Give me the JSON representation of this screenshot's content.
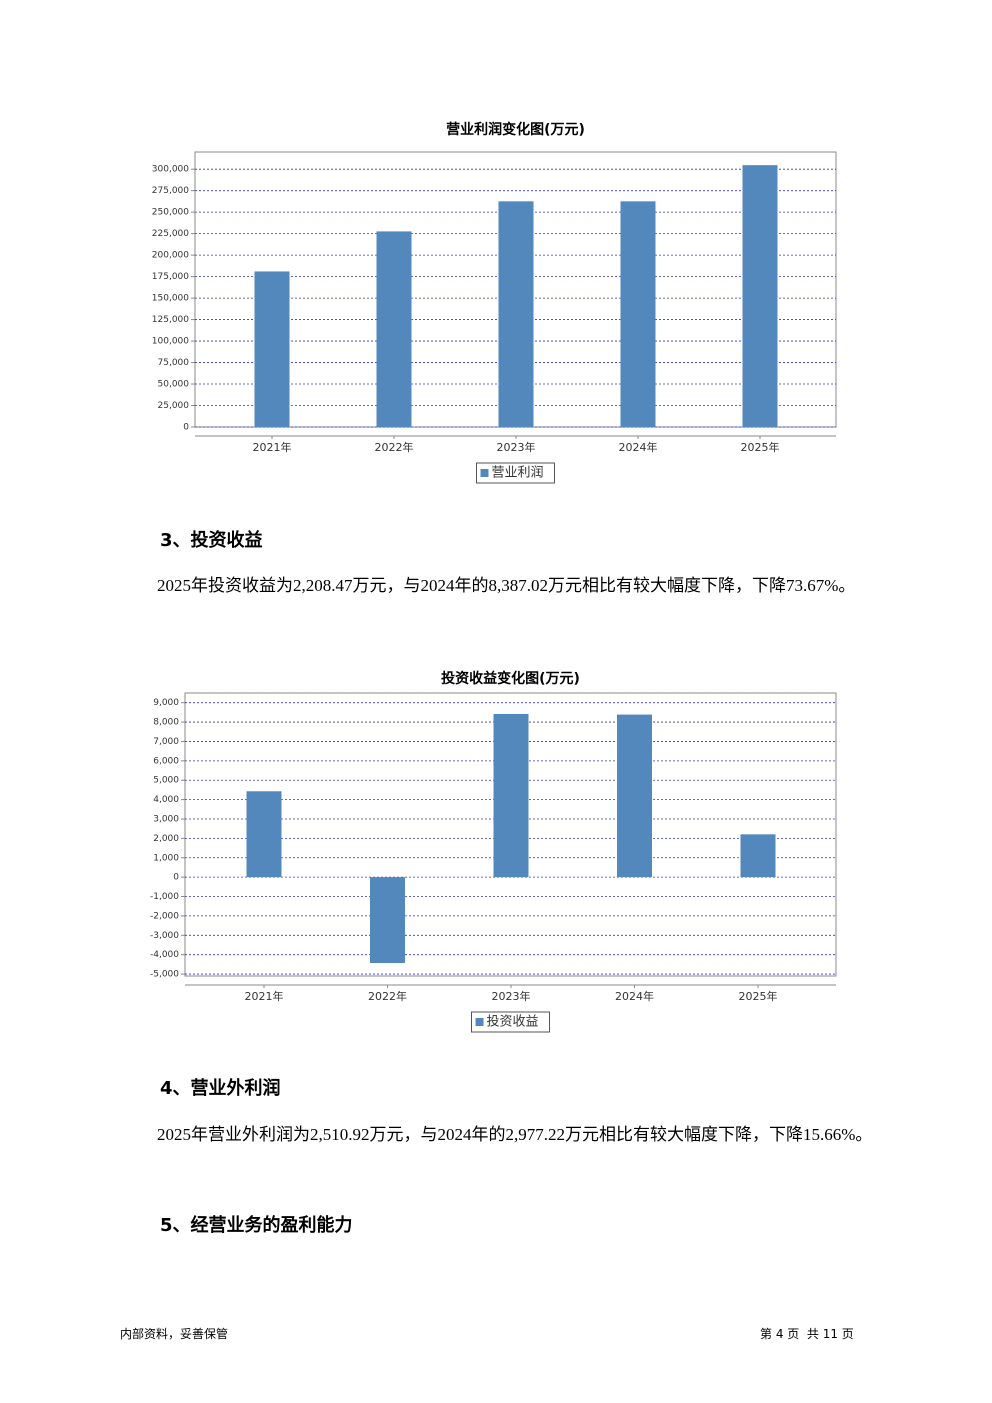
{
  "charts": [
    {
      "type": "bar",
      "title": "营业利润变化图(万元)",
      "categories": [
        "2021年",
        "2022年",
        "2023年",
        "2024年",
        "2025年"
      ],
      "series": [
        {
          "name": "营业利润",
          "color": "#5288bc",
          "values": [
            181000,
            227600,
            262600,
            262600,
            304700
          ]
        }
      ],
      "ylim": [
        0,
        320000
      ],
      "yticks": [
        0,
        {
          "value": 25000,
          "label": "25,000"
        },
        {
          "value": 50000,
          "label": "50,000"
        },
        {
          "value": 75000,
          "label": "75,000"
        },
        {
          "value": 100000,
          "label": "100,000"
        },
        {
          "value": 125000,
          "label": "125,000"
        },
        {
          "value": 150000,
          "label": "150,000"
        },
        {
          "value": 175000,
          "label": "175,000"
        },
        {
          "value": 200000,
          "label": "200,000"
        },
        {
          "value": 225000,
          "label": "225,000"
        },
        {
          "value": 250000,
          "label": "250,000"
        },
        {
          "value": 275000,
          "label": "275,000"
        },
        {
          "value": 300000,
          "label": "300,000"
        }
      ],
      "grid": true
    },
    {
      "type": "bar",
      "title": "投资收益变化图(万元)",
      "categories": [
        "2021年",
        "2022年",
        "2023年",
        "2024年",
        "2025年"
      ],
      "series": [
        {
          "name": "投资收益",
          "color": "#5288bc",
          "values": [
            4430,
            -4430,
            8420,
            8387.02,
            2208.47
          ]
        }
      ],
      "ylim": [
        -5100,
        9500
      ],
      "yticks": [
        {
          "value": -5000,
          "label": "-5,000"
        },
        {
          "value": -4000,
          "label": "-4,000"
        },
        {
          "value": -3000,
          "label": "-3,000"
        },
        {
          "value": -2000,
          "label": "-2,000"
        },
        {
          "value": -1000,
          "label": "-1,000"
        },
        0,
        {
          "value": 1000,
          "label": "1,000"
        },
        {
          "value": 2000,
          "label": "2,000"
        },
        {
          "value": 3000,
          "label": "3,000"
        },
        {
          "value": 4000,
          "label": "4,000"
        },
        {
          "value": 5000,
          "label": "5,000"
        },
        {
          "value": 6000,
          "label": "6,000"
        },
        {
          "value": 7000,
          "label": "7,000"
        },
        {
          "value": 8000,
          "label": "8,000"
        },
        {
          "value": 9000,
          "label": "9,000"
        }
      ],
      "grid": true
    }
  ],
  "sections": [
    {
      "heading": "3、投资收益",
      "text": "2025年投资收益为2,208.47万元，与2024年的8,387.02万元相比有较大幅度下降，下降73.67%。"
    },
    {
      "heading": "4、营业外利润",
      "text": "2025年营业外利润为2,510.92万元，与2024年的2,977.22万元相比有较大幅度下降，下降15.66%。"
    },
    {
      "heading": "5、经营业务的盈利能力"
    }
  ],
  "footer": {
    "left": "内部资料，妥善保管",
    "right": "第 4 页  共 11 页"
  }
}
